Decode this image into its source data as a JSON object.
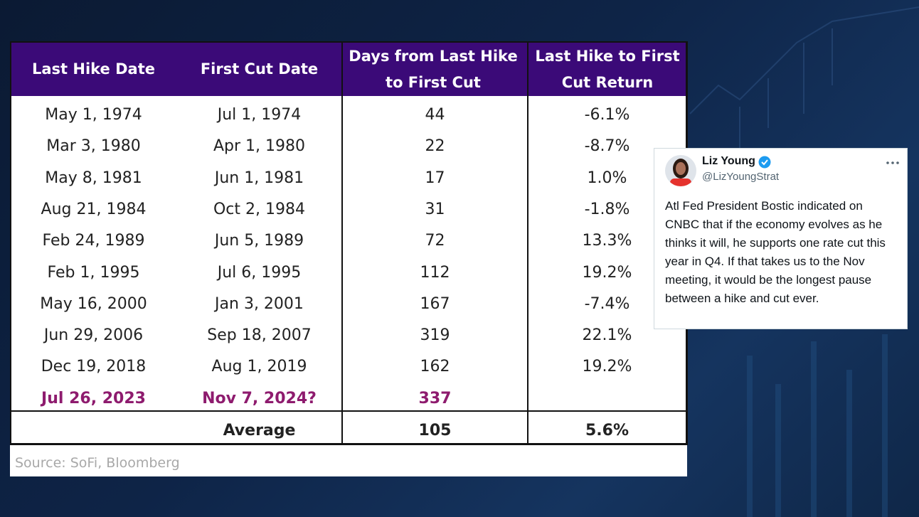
{
  "table": {
    "header": [
      "Last Hike Date",
      "First Cut Date",
      "Days from Last Hike to First Cut",
      "Last Hike to First Cut Return"
    ],
    "rows": [
      [
        "May 1, 1974",
        "Jul 1, 1974",
        "44",
        "-6.1%"
      ],
      [
        "Mar 3, 1980",
        "Apr 1, 1980",
        "22",
        "-8.7%"
      ],
      [
        "May 8, 1981",
        "Jun 1, 1981",
        "17",
        "1.0%"
      ],
      [
        "Aug 21, 1984",
        "Oct 2, 1984",
        "31",
        "-1.8%"
      ],
      [
        "Feb 24, 1989",
        "Jun 5, 1989",
        "72",
        "13.3%"
      ],
      [
        "Feb 1, 1995",
        "Jul 6, 1995",
        "112",
        "19.2%"
      ],
      [
        "May 16, 2000",
        "Jan 3, 2001",
        "167",
        "-7.4%"
      ],
      [
        "Jun 29, 2006",
        "Sep 18, 2007",
        "319",
        "22.1%"
      ],
      [
        "Dec 19, 2018",
        "Aug 1, 2019",
        "162",
        "19.2%"
      ],
      [
        "Jul 26, 2023",
        "Nov 7, 2024?",
        "337"
      ]
    ],
    "average": [
      "Average",
      "105",
      "5.6%"
    ],
    "source": "Source: SoFi, Bloomberg"
  },
  "tweet": {
    "name": "Liz Young",
    "handle": "@LizYoungStrat",
    "text": "Atl Fed President Bostic indicated on CNBC that if the economy evolves as he thinks it will, he supports one rate cut this year in Q4. If that takes us to the Nov meeting, it would be the longest pause between a hike and cut ever."
  }
}
